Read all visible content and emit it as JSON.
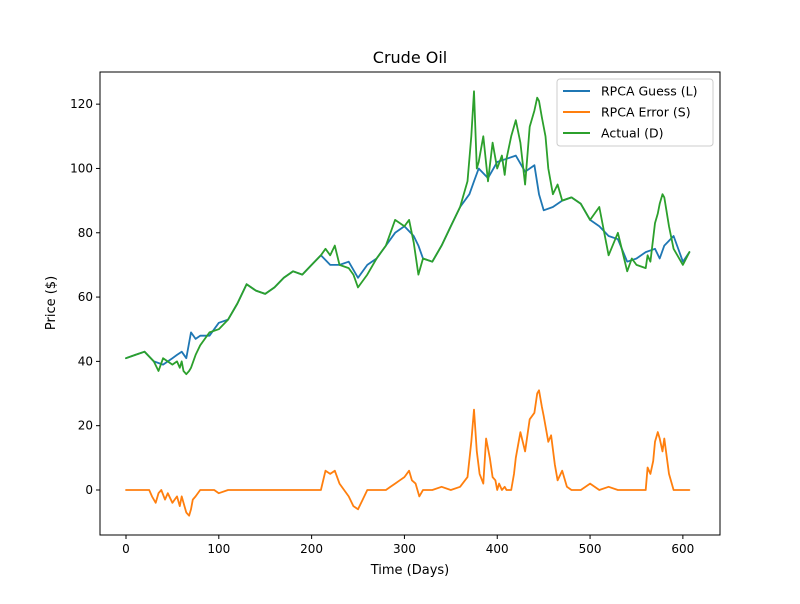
{
  "chart_data": {
    "type": "line",
    "title": "Crude Oil",
    "xlabel": "Time (Days)",
    "ylabel": "Price ($)",
    "xlim": [
      -28,
      640
    ],
    "ylim": [
      -14,
      130
    ],
    "xticks": [
      0,
      100,
      200,
      300,
      400,
      500,
      600
    ],
    "yticks": [
      0,
      20,
      40,
      60,
      80,
      100,
      120
    ],
    "grid": false,
    "legend_position": "top-right",
    "series": [
      {
        "name": "RPCA Guess (L)",
        "color": "#1f77b4",
        "x": [
          0,
          10,
          20,
          30,
          40,
          50,
          55,
          60,
          65,
          70,
          75,
          80,
          90,
          100,
          110,
          120,
          130,
          140,
          150,
          160,
          170,
          180,
          190,
          200,
          210,
          220,
          230,
          240,
          250,
          260,
          270,
          280,
          290,
          300,
          310,
          315,
          320,
          330,
          340,
          350,
          360,
          370,
          375,
          380,
          390,
          400,
          410,
          420,
          430,
          440,
          445,
          450,
          460,
          470,
          480,
          490,
          500,
          510,
          520,
          530,
          540,
          550,
          560,
          570,
          575,
          580,
          590,
          600,
          607
        ],
        "values": [
          41,
          42,
          43,
          40,
          39,
          41,
          42,
          43,
          41,
          49,
          47,
          48,
          48,
          52,
          53,
          58,
          64,
          62,
          61,
          63,
          66,
          68,
          67,
          70,
          73,
          70,
          70,
          71,
          66,
          70,
          72,
          76,
          80,
          82,
          79,
          76,
          72,
          71,
          76,
          82,
          88,
          92,
          96,
          100,
          97,
          102,
          103,
          104,
          99,
          101,
          92,
          87,
          88,
          90,
          91,
          89,
          84,
          82,
          79,
          78,
          71,
          72,
          74,
          75,
          72,
          76,
          79,
          71,
          74
        ]
      },
      {
        "name": "RPCA Error (S)",
        "color": "#ff7f0e",
        "x": [
          0,
          10,
          20,
          25,
          28,
          32,
          35,
          38,
          42,
          45,
          50,
          55,
          58,
          60,
          62,
          65,
          68,
          70,
          72,
          75,
          80,
          85,
          90,
          95,
          100,
          110,
          130,
          160,
          180,
          185,
          190,
          195,
          200,
          205,
          210,
          215,
          220,
          225,
          230,
          240,
          245,
          250,
          255,
          260,
          270,
          275,
          280,
          285,
          290,
          295,
          300,
          305,
          308,
          312,
          316,
          320,
          330,
          340,
          350,
          360,
          368,
          372,
          375,
          378,
          381,
          385,
          388,
          392,
          395,
          398,
          400,
          402,
          405,
          408,
          410,
          415,
          418,
          420,
          425,
          430,
          435,
          440,
          443,
          445,
          448,
          450,
          455,
          458,
          462,
          465,
          470,
          475,
          480,
          490,
          500,
          510,
          520,
          530,
          540,
          550,
          555,
          560,
          562,
          565,
          568,
          570,
          573,
          575,
          578,
          580,
          585,
          590,
          600,
          607
        ],
        "values": [
          0,
          0,
          0,
          0,
          -2,
          -4,
          -1,
          0,
          -3,
          -1,
          -4,
          -2,
          -5,
          -2,
          -4,
          -7,
          -8,
          -6,
          -3,
          -2,
          0,
          0,
          0,
          0,
          -1,
          0,
          0,
          0,
          0,
          0,
          0,
          0,
          0,
          0,
          0,
          6,
          5,
          6,
          2,
          -2,
          -5,
          -6,
          -3,
          0,
          0,
          0,
          0,
          1,
          2,
          3,
          4,
          6,
          3,
          2,
          -2,
          0,
          0,
          1,
          0,
          1,
          4,
          15,
          25,
          12,
          5,
          2,
          16,
          10,
          4,
          3,
          0,
          2,
          0,
          1,
          0,
          0,
          5,
          10,
          18,
          12,
          22,
          24,
          30,
          31,
          26,
          23,
          15,
          17,
          8,
          3,
          6,
          1,
          0,
          0,
          2,
          0,
          1,
          0,
          0,
          0,
          0,
          0,
          7,
          5,
          9,
          15,
          18,
          16,
          12,
          16,
          5,
          0,
          0,
          0
        ]
      },
      {
        "name": "Actual (D)",
        "color": "#2ca02c",
        "x": [
          0,
          10,
          20,
          30,
          35,
          40,
          50,
          55,
          58,
          60,
          62,
          65,
          68,
          70,
          75,
          80,
          90,
          100,
          110,
          120,
          130,
          140,
          150,
          160,
          170,
          180,
          190,
          200,
          210,
          215,
          220,
          225,
          230,
          240,
          245,
          250,
          260,
          270,
          280,
          290,
          300,
          305,
          310,
          315,
          320,
          330,
          340,
          350,
          360,
          368,
          372,
          375,
          378,
          380,
          385,
          390,
          395,
          400,
          405,
          408,
          410,
          415,
          420,
          425,
          430,
          435,
          440,
          443,
          445,
          448,
          452,
          455,
          460,
          465,
          470,
          480,
          490,
          500,
          510,
          520,
          530,
          540,
          545,
          550,
          560,
          562,
          565,
          570,
          573,
          575,
          578,
          580,
          585,
          590,
          600,
          607
        ],
        "values": [
          41,
          42,
          43,
          40,
          37,
          41,
          39,
          40,
          38,
          40,
          37,
          36,
          37,
          38,
          42,
          45,
          49,
          50,
          53,
          58,
          64,
          62,
          61,
          63,
          66,
          68,
          67,
          70,
          73,
          75,
          73,
          76,
          70,
          69,
          67,
          63,
          67,
          72,
          76,
          84,
          82,
          84,
          77,
          67,
          72,
          71,
          76,
          82,
          88,
          96,
          110,
          124,
          100,
          102,
          110,
          96,
          108,
          100,
          104,
          98,
          103,
          110,
          115,
          108,
          95,
          113,
          118,
          122,
          121,
          116,
          110,
          100,
          92,
          95,
          90,
          91,
          89,
          84,
          88,
          73,
          80,
          68,
          72,
          70,
          69,
          73,
          71,
          83,
          86,
          89,
          92,
          91,
          82,
          75,
          70,
          74
        ]
      }
    ]
  }
}
